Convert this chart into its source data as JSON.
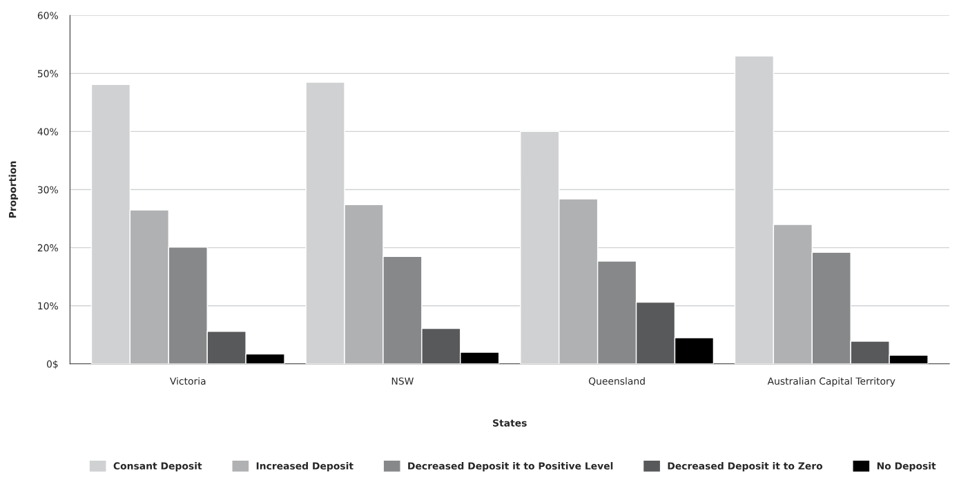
{
  "chart_data": {
    "type": "bar",
    "xlabel": "States",
    "ylabel": "Proportion",
    "categories": [
      "Victoria",
      "NSW",
      "Queensland",
      "Australian Capital Territory"
    ],
    "series": [
      {
        "name": "Consant Deposit",
        "color": "#d0d1d3",
        "values": [
          48.1,
          48.5,
          40.0,
          53.0
        ]
      },
      {
        "name": "Increased Deposit",
        "color": "#b0b1b3",
        "values": [
          26.5,
          27.4,
          28.4,
          24.0
        ]
      },
      {
        "name": "Decreased Deposit it to Positive Level",
        "color": "#878889",
        "values": [
          20.1,
          18.5,
          17.7,
          19.2
        ]
      },
      {
        "name": "Decreased Deposit it to Zero",
        "color": "#58595b",
        "values": [
          5.6,
          6.1,
          10.6,
          3.9
        ]
      },
      {
        "name": "No Deposit",
        "color": "#000000",
        "values": [
          1.7,
          2.0,
          4.5,
          1.5
        ]
      }
    ],
    "ylim": [
      0,
      60
    ],
    "yticks": [
      {
        "value": 0,
        "label": "0$"
      },
      {
        "value": 10,
        "label": "10%"
      },
      {
        "value": 20,
        "label": "20%"
      },
      {
        "value": 30,
        "label": "30%"
      },
      {
        "value": 40,
        "label": "40%"
      },
      {
        "value": 50,
        "label": "50%"
      },
      {
        "value": 60,
        "label": "60%"
      }
    ],
    "grid": "y",
    "legend": "bottom"
  }
}
